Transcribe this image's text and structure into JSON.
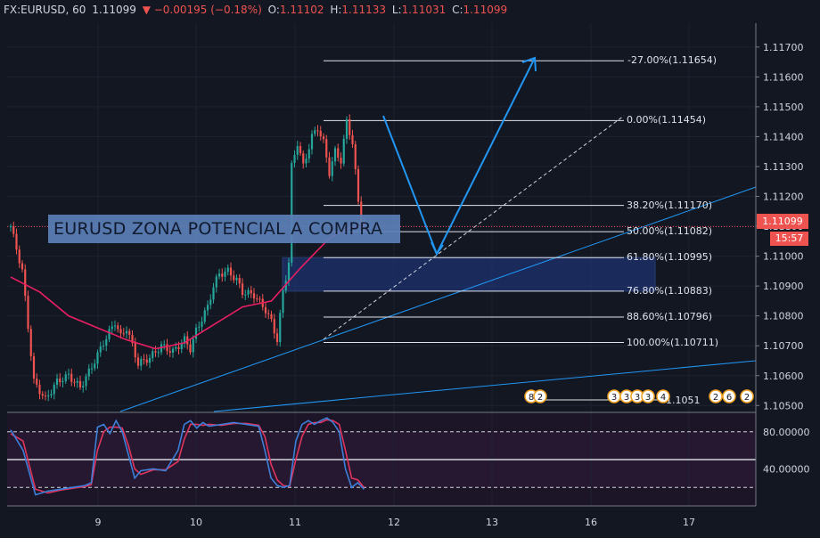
{
  "header": {
    "symbol": "FX:EURUSD, 60",
    "last": "1.11099",
    "change": "▼ −0.00195 (−0.18%)",
    "o_label": "O:",
    "o": "1.11102",
    "h_label": "H:",
    "h": "1.11133",
    "l_label": "L:",
    "l": "1.11031",
    "c_label": "C:",
    "c": "1.11099"
  },
  "annotation": "EURUSD ZONA POTENCIAL A COMPRA",
  "price_tag": "1.11099",
  "time_tag": "15:57",
  "colors": {
    "background": "#131722",
    "up": "#26a69a",
    "down": "#ef5350",
    "ma": "#e91e63",
    "trend": "#2196f3",
    "zone": "#1e3a8a",
    "stoch_k": "#3d7fd9",
    "stoch_d": "#e0345e"
  },
  "fib_levels": [
    {
      "label": "-27.00%(1.11654)",
      "price": 1.11654
    },
    {
      "label": "0.00%(1.11454)",
      "price": 1.11454
    },
    {
      "label": "38.20%(1.11170)",
      "price": 1.1117
    },
    {
      "label": "50.00%(1.11082)",
      "price": 1.11082
    },
    {
      "label": "61.80%(1.10995)",
      "price": 1.10995
    },
    {
      "label": "76.80%(1.10883)",
      "price": 1.10883
    },
    {
      "label": "88.60%(1.10796)",
      "price": 1.10796
    },
    {
      "label": "100.00%(1.10711)",
      "price": 1.10711
    }
  ],
  "event_badges": [
    "8",
    "2",
    "3",
    "3",
    "3",
    "3",
    "4",
    "2",
    "6",
    "2"
  ],
  "event_level_label": "1.1051",
  "chart_data": {
    "type": "candlestick",
    "price_axis": {
      "ticks": [
        "1.11700",
        "1.11600",
        "1.11500",
        "1.11400",
        "1.11300",
        "1.11200",
        "1.11100",
        "1.11000",
        "1.10900",
        "1.10800",
        "1.10700",
        "1.10600",
        "1.10500"
      ],
      "range": [
        1.1048,
        1.1178
      ]
    },
    "time_axis": {
      "ticks": [
        "9",
        "10",
        "11",
        "12",
        "13",
        "16",
        "17"
      ]
    },
    "oscillator": {
      "name": "Stochastic",
      "ticks": [
        "80.00000",
        "40.00000"
      ],
      "range": [
        0,
        100
      ],
      "bands": [
        20,
        80
      ],
      "mid": 50
    },
    "series": [
      {
        "name": "close_path",
        "points": [
          [
            0,
            1.111
          ],
          [
            4,
            1.1095
          ],
          [
            8,
            1.1058
          ],
          [
            12,
            1.1052
          ],
          [
            16,
            1.1058
          ],
          [
            20,
            1.106
          ],
          [
            24,
            1.1056
          ],
          [
            28,
            1.1063
          ],
          [
            32,
            1.1071
          ],
          [
            36,
            1.1078
          ],
          [
            38,
            1.1073
          ],
          [
            40,
            1.1076
          ],
          [
            44,
            1.1064
          ],
          [
            48,
            1.1066
          ],
          [
            52,
            1.107
          ],
          [
            56,
            1.1068
          ],
          [
            60,
            1.1072
          ],
          [
            62,
            1.1069
          ],
          [
            64,
            1.1075
          ],
          [
            68,
            1.1083
          ],
          [
            70,
            1.109
          ],
          [
            72,
            1.1094
          ],
          [
            75,
            1.1095
          ],
          [
            78,
            1.1092
          ],
          [
            80,
            1.1088
          ],
          [
            84,
            1.1087
          ],
          [
            88,
            1.1082
          ],
          [
            90,
            1.1078
          ],
          [
            92,
            1.1072
          ],
          [
            94,
            1.1088
          ],
          [
            96,
            1.1098
          ],
          [
            97,
            1.113
          ],
          [
            99,
            1.1138
          ],
          [
            101,
            1.113
          ],
          [
            104,
            1.114
          ],
          [
            106,
            1.1143
          ],
          [
            108,
            1.1138
          ],
          [
            110,
            1.1128
          ],
          [
            112,
            1.1135
          ],
          [
            114,
            1.1132
          ],
          [
            116,
            1.1145
          ],
          [
            118,
            1.1138
          ],
          [
            119,
            1.1128
          ],
          [
            120,
            1.1118
          ],
          [
            121,
            1.1112
          ],
          [
            122,
            1.111
          ]
        ]
      }
    ],
    "ma_series": {
      "name": "MA",
      "points": [
        [
          0,
          1.1093
        ],
        [
          10,
          1.1088
        ],
        [
          20,
          1.108
        ],
        [
          30,
          1.1076
        ],
        [
          40,
          1.1072
        ],
        [
          50,
          1.1069
        ],
        [
          60,
          1.1071
        ],
        [
          70,
          1.1077
        ],
        [
          80,
          1.1083
        ],
        [
          90,
          1.1085
        ],
        [
          100,
          1.1096
        ],
        [
          110,
          1.1106
        ],
        [
          118,
          1.111
        ],
        [
          122,
          1.111
        ]
      ]
    },
    "stoch_k": [
      [
        0,
        82
      ],
      [
        4,
        60
      ],
      [
        8,
        12
      ],
      [
        12,
        16
      ],
      [
        16,
        18
      ],
      [
        20,
        20
      ],
      [
        24,
        22
      ],
      [
        26,
        25
      ],
      [
        28,
        85
      ],
      [
        30,
        88
      ],
      [
        32,
        78
      ],
      [
        34,
        92
      ],
      [
        36,
        80
      ],
      [
        38,
        55
      ],
      [
        40,
        30
      ],
      [
        42,
        38
      ],
      [
        46,
        40
      ],
      [
        50,
        38
      ],
      [
        54,
        60
      ],
      [
        56,
        88
      ],
      [
        58,
        92
      ],
      [
        60,
        84
      ],
      [
        62,
        90
      ],
      [
        64,
        86
      ],
      [
        68,
        88
      ],
      [
        72,
        90
      ],
      [
        76,
        88
      ],
      [
        80,
        86
      ],
      [
        82,
        60
      ],
      [
        84,
        30
      ],
      [
        86,
        22
      ],
      [
        88,
        20
      ],
      [
        90,
        22
      ],
      [
        92,
        70
      ],
      [
        94,
        88
      ],
      [
        96,
        92
      ],
      [
        98,
        88
      ],
      [
        100,
        92
      ],
      [
        102,
        95
      ],
      [
        104,
        90
      ],
      [
        106,
        80
      ],
      [
        108,
        40
      ],
      [
        110,
        20
      ],
      [
        112,
        25
      ],
      [
        114,
        18
      ]
    ],
    "stoch_d": [
      [
        0,
        78
      ],
      [
        4,
        70
      ],
      [
        8,
        18
      ],
      [
        12,
        14
      ],
      [
        16,
        17
      ],
      [
        20,
        19
      ],
      [
        24,
        21
      ],
      [
        26,
        23
      ],
      [
        28,
        60
      ],
      [
        30,
        80
      ],
      [
        32,
        85
      ],
      [
        34,
        85
      ],
      [
        36,
        84
      ],
      [
        38,
        65
      ],
      [
        40,
        40
      ],
      [
        42,
        34
      ],
      [
        46,
        39
      ],
      [
        50,
        39
      ],
      [
        54,
        48
      ],
      [
        56,
        72
      ],
      [
        58,
        88
      ],
      [
        60,
        88
      ],
      [
        62,
        87
      ],
      [
        64,
        88
      ],
      [
        68,
        87
      ],
      [
        72,
        89
      ],
      [
        76,
        89
      ],
      [
        80,
        87
      ],
      [
        82,
        75
      ],
      [
        84,
        45
      ],
      [
        86,
        28
      ],
      [
        88,
        22
      ],
      [
        90,
        21
      ],
      [
        92,
        50
      ],
      [
        94,
        75
      ],
      [
        96,
        88
      ],
      [
        98,
        90
      ],
      [
        100,
        90
      ],
      [
        102,
        93
      ],
      [
        104,
        92
      ],
      [
        106,
        88
      ],
      [
        108,
        60
      ],
      [
        110,
        30
      ],
      [
        112,
        28
      ],
      [
        114,
        20
      ]
    ]
  }
}
